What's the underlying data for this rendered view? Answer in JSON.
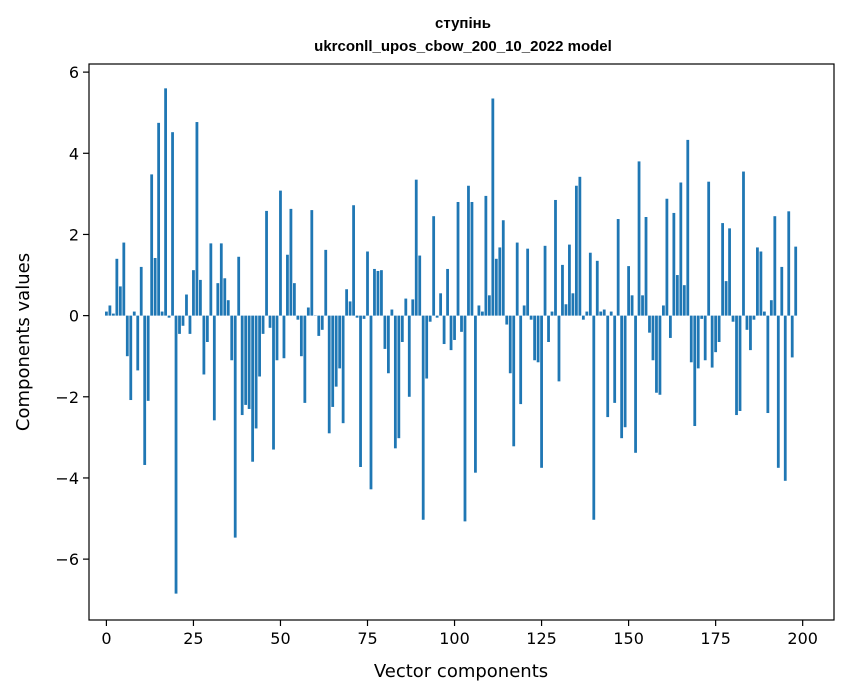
{
  "chart_data": {
    "type": "bar",
    "title": "ступінь",
    "subtitle": "ukrconll_upos_cbow_200_10_2022 model",
    "xlabel": "Vector components",
    "ylabel": "Components values",
    "xlim": [
      -5,
      209
    ],
    "ylim": [
      -7.5,
      6.2
    ],
    "xticks": [
      0,
      25,
      50,
      75,
      100,
      125,
      150,
      175,
      200
    ],
    "xtick_labels": [
      "0",
      "25",
      "50",
      "75",
      "100",
      "125",
      "150",
      "175",
      "200"
    ],
    "yticks": [
      -6,
      -4,
      -2,
      0,
      2,
      4,
      6
    ],
    "ytick_labels": [
      "−6",
      "−4",
      "−2",
      "0",
      "2",
      "4",
      "6"
    ],
    "bar_color": "#1f77b4",
    "grid": false,
    "values": [
      0.1,
      0.25,
      0.05,
      1.4,
      0.72,
      1.8,
      -1.0,
      -2.08,
      0.1,
      -1.35,
      1.2,
      -3.68,
      -2.1,
      3.48,
      1.42,
      4.75,
      0.1,
      5.6,
      -0.05,
      4.52,
      -6.85,
      -0.45,
      -0.25,
      0.52,
      -0.45,
      1.12,
      4.77,
      0.88,
      -1.45,
      -0.65,
      1.78,
      -2.58,
      0.8,
      1.78,
      0.92,
      0.38,
      -1.1,
      -5.47,
      1.45,
      -2.45,
      -2.2,
      -2.3,
      -3.6,
      -2.78,
      -1.5,
      -0.45,
      2.58,
      -0.3,
      -3.3,
      -1.1,
      3.08,
      -1.05,
      1.5,
      2.63,
      0.8,
      -0.1,
      -1.0,
      -2.15,
      0.2,
      2.6,
      0.0,
      -0.5,
      -0.35,
      1.62,
      -2.9,
      -2.25,
      -1.75,
      -1.3,
      -2.65,
      0.65,
      0.35,
      2.72,
      -0.05,
      -3.73,
      -0.08,
      1.58,
      -4.28,
      1.15,
      1.1,
      1.12,
      -0.82,
      -1.42,
      0.15,
      -3.27,
      -3.02,
      -0.65,
      0.42,
      -2.0,
      0.4,
      3.35,
      1.48,
      -5.03,
      -1.55,
      -0.15,
      2.45,
      -0.05,
      0.55,
      -0.7,
      1.15,
      -0.85,
      -0.6,
      2.8,
      -0.4,
      -5.07,
      3.2,
      2.8,
      -3.87,
      0.25,
      0.1,
      2.95,
      0.5,
      5.35,
      1.4,
      1.68,
      2.35,
      -0.22,
      -1.42,
      -3.22,
      1.8,
      -2.18,
      0.25,
      1.65,
      -0.1,
      -1.1,
      -1.15,
      -3.75,
      1.72,
      -0.65,
      0.1,
      2.85,
      -1.62,
      1.25,
      0.28,
      1.75,
      0.55,
      3.2,
      3.42,
      -0.1,
      0.1,
      1.55,
      -5.03,
      1.35,
      0.1,
      0.15,
      -2.5,
      0.1,
      -2.15,
      2.38,
      -3.02,
      -2.75,
      1.22,
      0.5,
      -3.38,
      3.8,
      0.5,
      2.43,
      -0.42,
      -1.1,
      -1.9,
      -1.95,
      0.25,
      2.88,
      -0.55,
      2.53,
      1.0,
      3.28,
      0.75,
      4.33,
      -1.15,
      -2.72,
      -1.3,
      -0.08,
      -1.1,
      3.3,
      -1.28,
      -0.9,
      -0.65,
      2.28,
      0.85,
      2.15,
      -0.15,
      -2.45,
      -2.35,
      3.55,
      -0.35,
      -0.85,
      -0.1,
      1.68,
      1.58,
      0.1,
      -2.4,
      0.38,
      2.45,
      -3.75,
      1.2,
      -4.07,
      2.57,
      -1.03,
      1.7
    ]
  }
}
